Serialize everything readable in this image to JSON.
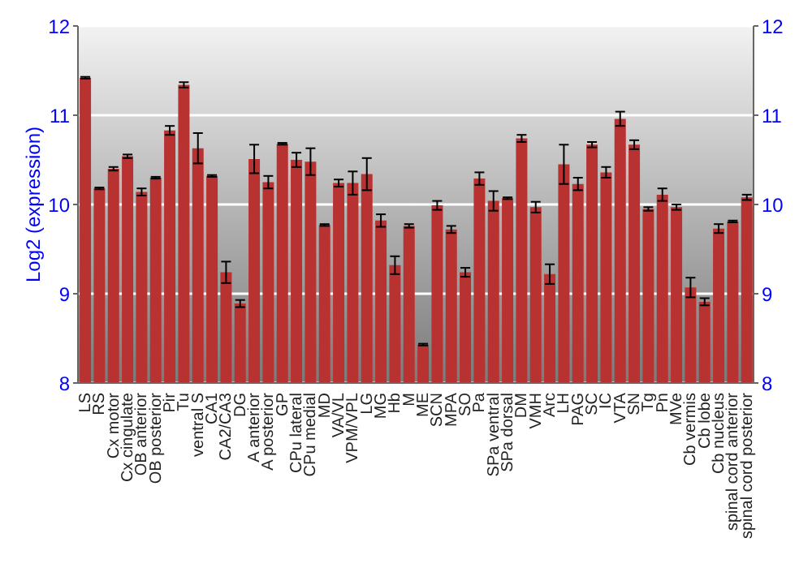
{
  "chart_data": {
    "type": "bar",
    "ylabel": "Log2 (expression)",
    "categories": [
      "LS",
      "RS",
      "Cx motor",
      "Cx cingulate",
      "OB anterior",
      "OB posterior",
      "Pir",
      "Tu",
      "ventral S",
      "CA1",
      "CA2/CA3",
      "DG",
      "A anterior",
      "A posterior",
      "GP",
      "CPu lateral",
      "CPu medial",
      "MD",
      "VA/VL",
      "VPM/VPL",
      "LG",
      "MG",
      "Hb",
      "M",
      "ME",
      "SCN",
      "MPA",
      "SO",
      "Pa",
      "SPa ventral",
      "SPa dorsal",
      "DM",
      "VMH",
      "Arc",
      "LH",
      "PAG",
      "SC",
      "IC",
      "VTA",
      "SN",
      "Tg",
      "Pn",
      "MVe",
      "Cb vermis",
      "Cb lobe",
      "Cb nucleus",
      "spinal cord anterior",
      "spinal cord posterior"
    ],
    "values": [
      11.42,
      10.18,
      10.4,
      10.54,
      10.14,
      10.3,
      10.83,
      11.34,
      10.63,
      10.32,
      9.24,
      8.89,
      10.51,
      10.25,
      10.68,
      10.5,
      10.48,
      9.77,
      10.24,
      10.24,
      10.34,
      9.82,
      9.32,
      9.76,
      8.43,
      9.99,
      9.72,
      9.24,
      10.29,
      10.04,
      10.07,
      10.74,
      9.97,
      9.22,
      10.45,
      10.23,
      10.67,
      10.36,
      10.96,
      10.67,
      9.95,
      10.11,
      9.97,
      9.07,
      8.91,
      9.73,
      9.81,
      10.08
    ],
    "errors": [
      0.01,
      0.01,
      0.02,
      0.02,
      0.04,
      0.01,
      0.05,
      0.03,
      0.17,
      0.01,
      0.12,
      0.04,
      0.16,
      0.07,
      0.01,
      0.08,
      0.15,
      0.01,
      0.04,
      0.13,
      0.18,
      0.07,
      0.1,
      0.02,
      0.01,
      0.05,
      0.04,
      0.05,
      0.07,
      0.11,
      0.01,
      0.04,
      0.06,
      0.11,
      0.22,
      0.07,
      0.03,
      0.06,
      0.08,
      0.05,
      0.02,
      0.07,
      0.03,
      0.11,
      0.04,
      0.05,
      0.01,
      0.03
    ],
    "color": "#b83232",
    "ylim": [
      8,
      12
    ],
    "yticks": [
      8,
      9,
      10,
      11,
      12
    ],
    "y2lim": [
      8,
      12
    ],
    "y2ticks": [
      8,
      9,
      10,
      11,
      12
    ],
    "grid": "y"
  }
}
